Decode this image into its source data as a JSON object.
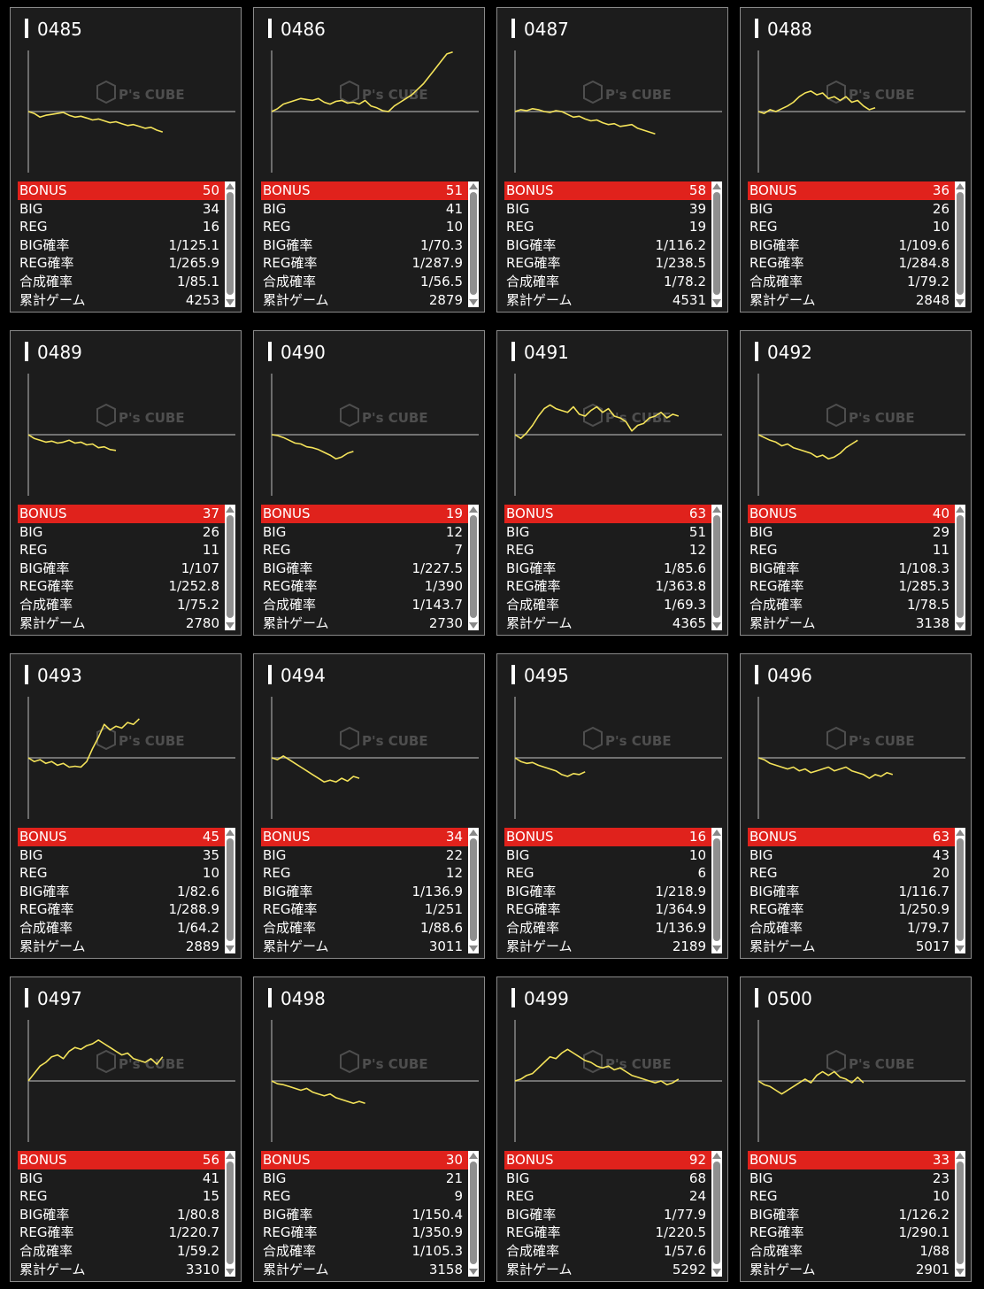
{
  "colors": {
    "line": "#f4e35a",
    "bonus_bg": "#e0221c",
    "card_bg": "#1c1c1c",
    "axis": "#c8c8c8"
  },
  "labels": {
    "bonus": "BONUS",
    "big": "BIG",
    "reg": "REG",
    "big_rate": "BIG確率",
    "reg_rate": "REG確率",
    "combined_rate": "合成確率",
    "total_games": "累計ゲーム"
  },
  "watermark": {
    "text": "P's CUBE",
    "icon": "cube-logo-icon"
  },
  "machines": [
    {
      "id": "0485",
      "bonus": "50",
      "big": "34",
      "reg": "16",
      "big_rate": "1/125.1",
      "reg_rate": "1/265.9",
      "combined_rate": "1/85.1",
      "total_games": "4253",
      "trend": [
        0,
        -2,
        -6,
        -4,
        -3,
        -2,
        -1,
        -4,
        -6,
        -5,
        -7,
        -9,
        -8,
        -10,
        -12,
        -11,
        -13,
        -15,
        -14,
        -16,
        -18,
        -17,
        -20,
        -22
      ]
    },
    {
      "id": "0486",
      "bonus": "51",
      "big": "41",
      "reg": "10",
      "big_rate": "1/70.3",
      "reg_rate": "1/287.9",
      "combined_rate": "1/56.5",
      "total_games": "2879",
      "trend": [
        0,
        3,
        8,
        10,
        12,
        14,
        13,
        12,
        14,
        10,
        8,
        11,
        12,
        9,
        10,
        8,
        12,
        6,
        4,
        1,
        0,
        6,
        10,
        14,
        18,
        24,
        30,
        38,
        46,
        54,
        62,
        64
      ]
    },
    {
      "id": "0487",
      "bonus": "58",
      "big": "39",
      "reg": "19",
      "big_rate": "1/116.2",
      "reg_rate": "1/238.5",
      "combined_rate": "1/78.2",
      "total_games": "4531",
      "trend": [
        0,
        2,
        1,
        3,
        2,
        0,
        -1,
        1,
        0,
        -3,
        -6,
        -5,
        -8,
        -10,
        -9,
        -12,
        -14,
        -13,
        -16,
        -15,
        -14,
        -18,
        -20,
        -22,
        -24
      ]
    },
    {
      "id": "0488",
      "bonus": "36",
      "big": "26",
      "reg": "10",
      "big_rate": "1/109.6",
      "reg_rate": "1/284.8",
      "combined_rate": "1/79.2",
      "total_games": "2848",
      "trend": [
        0,
        -2,
        2,
        0,
        3,
        6,
        10,
        16,
        20,
        22,
        18,
        20,
        14,
        16,
        12,
        16,
        10,
        12,
        6,
        2,
        4
      ]
    },
    {
      "id": "0489",
      "bonus": "37",
      "big": "26",
      "reg": "11",
      "big_rate": "1/107",
      "reg_rate": "1/252.8",
      "combined_rate": "1/75.2",
      "total_games": "2780",
      "trend": [
        0,
        -4,
        -6,
        -8,
        -7,
        -9,
        -8,
        -6,
        -9,
        -8,
        -11,
        -10,
        -14,
        -13,
        -16,
        -17
      ]
    },
    {
      "id": "0490",
      "bonus": "19",
      "big": "12",
      "reg": "7",
      "big_rate": "1/227.5",
      "reg_rate": "1/390",
      "combined_rate": "1/143.7",
      "total_games": "2730",
      "trend": [
        0,
        -1,
        -3,
        -6,
        -9,
        -10,
        -13,
        -14,
        -16,
        -19,
        -22,
        -26,
        -24,
        -20,
        -18
      ]
    },
    {
      "id": "0491",
      "bonus": "63",
      "big": "51",
      "reg": "12",
      "big_rate": "1/85.6",
      "reg_rate": "1/363.8",
      "combined_rate": "1/69.3",
      "total_games": "4365",
      "trend": [
        0,
        -4,
        2,
        10,
        20,
        28,
        32,
        28,
        26,
        24,
        30,
        22,
        20,
        26,
        30,
        24,
        28,
        20,
        18,
        14,
        4,
        10,
        12,
        18,
        20,
        24,
        18,
        22,
        20
      ]
    },
    {
      "id": "0492",
      "bonus": "40",
      "big": "29",
      "reg": "11",
      "big_rate": "1/108.3",
      "reg_rate": "1/285.3",
      "combined_rate": "1/78.5",
      "total_games": "3138",
      "trend": [
        0,
        -3,
        -6,
        -8,
        -12,
        -10,
        -14,
        -16,
        -18,
        -20,
        -24,
        -22,
        -26,
        -24,
        -20,
        -14,
        -10,
        -6
      ]
    },
    {
      "id": "0493",
      "bonus": "45",
      "big": "35",
      "reg": "10",
      "big_rate": "1/82.6",
      "reg_rate": "1/288.9",
      "combined_rate": "1/64.2",
      "total_games": "2889",
      "trend": [
        0,
        -4,
        -2,
        -6,
        -4,
        -8,
        -6,
        -10,
        -9,
        -10,
        -4,
        10,
        22,
        36,
        30,
        34,
        32,
        38,
        36,
        42
      ]
    },
    {
      "id": "0494",
      "bonus": "34",
      "big": "22",
      "reg": "12",
      "big_rate": "1/136.9",
      "reg_rate": "1/251",
      "combined_rate": "1/88.6",
      "total_games": "3011",
      "trend": [
        0,
        -2,
        2,
        -2,
        -6,
        -10,
        -14,
        -18,
        -22,
        -26,
        -24,
        -26,
        -22,
        -25,
        -20,
        -22
      ]
    },
    {
      "id": "0495",
      "bonus": "16",
      "big": "10",
      "reg": "6",
      "big_rate": "1/218.9",
      "reg_rate": "1/364.9",
      "combined_rate": "1/136.9",
      "total_games": "2189",
      "trend": [
        0,
        -4,
        -6,
        -5,
        -8,
        -10,
        -12,
        -14,
        -18,
        -20,
        -17,
        -18,
        -15
      ]
    },
    {
      "id": "0496",
      "bonus": "63",
      "big": "43",
      "reg": "20",
      "big_rate": "1/116.7",
      "reg_rate": "1/250.9",
      "combined_rate": "1/79.7",
      "total_games": "5017",
      "trend": [
        0,
        -2,
        -6,
        -8,
        -10,
        -12,
        -10,
        -14,
        -12,
        -16,
        -14,
        -12,
        -10,
        -14,
        -12,
        -10,
        -14,
        -16,
        -18,
        -22,
        -18,
        -20,
        -16,
        -18
      ]
    },
    {
      "id": "0497",
      "bonus": "56",
      "big": "41",
      "reg": "15",
      "big_rate": "1/80.8",
      "reg_rate": "1/220.7",
      "combined_rate": "1/59.2",
      "total_games": "3310",
      "trend": [
        0,
        8,
        16,
        20,
        26,
        28,
        24,
        32,
        36,
        34,
        38,
        40,
        44,
        40,
        36,
        32,
        28,
        30,
        24,
        22,
        20,
        24,
        18,
        26
      ]
    },
    {
      "id": "0498",
      "bonus": "30",
      "big": "21",
      "reg": "9",
      "big_rate": "1/150.4",
      "reg_rate": "1/350.9",
      "combined_rate": "1/105.3",
      "total_games": "3158",
      "trend": [
        0,
        -3,
        -4,
        -6,
        -8,
        -10,
        -8,
        -12,
        -14,
        -16,
        -14,
        -18,
        -20,
        -22,
        -24,
        -22,
        -24
      ]
    },
    {
      "id": "0499",
      "bonus": "92",
      "big": "68",
      "reg": "24",
      "big_rate": "1/77.9",
      "reg_rate": "1/220.5",
      "combined_rate": "1/57.6",
      "total_games": "5292",
      "trend": [
        0,
        2,
        6,
        8,
        14,
        20,
        26,
        24,
        30,
        34,
        30,
        26,
        22,
        20,
        16,
        14,
        16,
        12,
        14,
        10,
        6,
        4,
        2,
        0,
        -2,
        0,
        -4,
        -2,
        2
      ]
    },
    {
      "id": "0500",
      "bonus": "33",
      "big": "23",
      "reg": "10",
      "big_rate": "1/126.2",
      "reg_rate": "1/290.1",
      "combined_rate": "1/88",
      "total_games": "2901",
      "trend": [
        0,
        -4,
        -6,
        -10,
        -14,
        -10,
        -6,
        -2,
        2,
        -2,
        6,
        10,
        6,
        10,
        4,
        2,
        -2,
        4,
        -2
      ]
    }
  ]
}
